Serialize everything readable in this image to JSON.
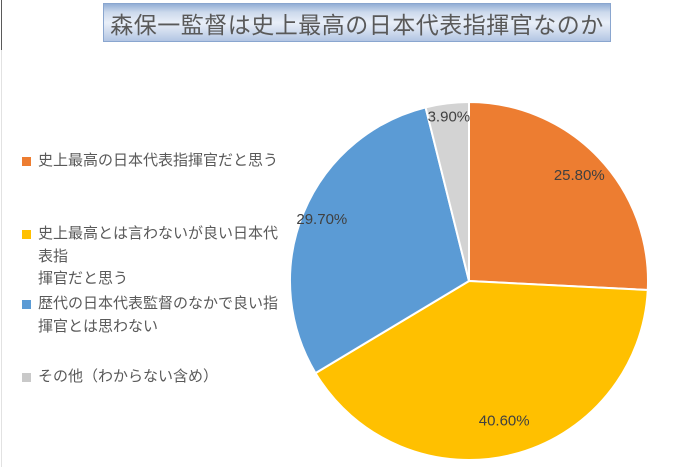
{
  "title": "森保一監督は史上最高の日本代表指揮官なのか",
  "colors": {
    "slice_orange": "#ED7D31",
    "slice_gold": "#FFC000",
    "slice_blue": "#5B9BD5",
    "slice_gray": "#D3D3D3",
    "text_gray": "#595959",
    "label_gray": "#404040"
  },
  "legend": {
    "items": [
      {
        "color": "#ED7D31",
        "lines": [
          "史上最高の日本代表指揮官だと思う"
        ]
      },
      {
        "color": "#FFC000",
        "lines": [
          "史上最高とは言わないが良い日本代",
          "表指",
          "揮官だと思う"
        ]
      },
      {
        "color": "#5B9BD5",
        "lines": [
          "歴代の日本代表監督のなかで良い指",
          "揮官とは思わない"
        ]
      },
      {
        "color": "#C9C9C9",
        "lines": [
          "その他（わからない含め）"
        ]
      }
    ]
  },
  "chart_data": {
    "type": "pie",
    "title": "森保一監督は史上最高の日本代表指揮官なのか",
    "categories": [
      "史上最高の日本代表指揮官だと思う",
      "史上最高とは言わないが良い日本代表指揮官だと思う",
      "歴代の日本代表監督のなかで良い指揮官とは思わない",
      "その他（わからない含め）"
    ],
    "values": [
      25.8,
      40.6,
      29.7,
      3.9
    ],
    "labels": [
      "25.80%",
      "40.60%",
      "29.70%",
      "3.90%"
    ],
    "slice_colors": [
      "#ED7D31",
      "#FFC000",
      "#5B9BD5",
      "#D3D3D3"
    ],
    "start_angle_deg": 0,
    "direction": "clockwise",
    "legend_position": "left"
  }
}
